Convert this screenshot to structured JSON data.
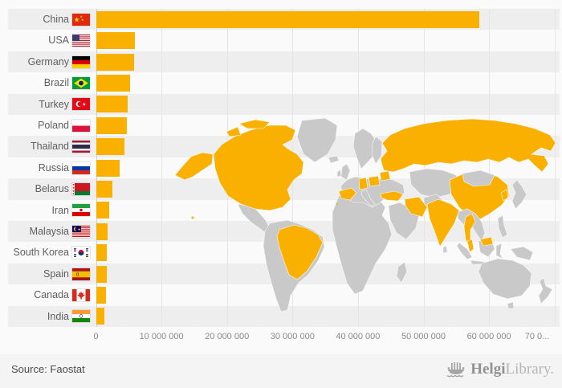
{
  "chart_data": {
    "type": "bar",
    "orientation": "horizontal",
    "title": "",
    "xlabel": "",
    "ylabel": "",
    "xlim": [
      0,
      70000000
    ],
    "grid": true,
    "categories": [
      "China",
      "USA",
      "Germany",
      "Brazil",
      "Turkey",
      "Poland",
      "Thailand",
      "Russia",
      "Belarus",
      "Iran",
      "Malaysia",
      "South Korea",
      "Spain",
      "Canada",
      "India"
    ],
    "values": [
      58400000,
      5900000,
      5700000,
      5200000,
      4750000,
      4600000,
      4250000,
      3550000,
      2400000,
      2000000,
      1700000,
      1600000,
      1550000,
      1500000,
      1200000
    ],
    "flags": [
      "cn",
      "us",
      "de",
      "br",
      "tr",
      "pl",
      "th",
      "ru",
      "by",
      "ir",
      "my",
      "kr",
      "es",
      "ca",
      "in"
    ],
    "x_tick_labels": [
      "0",
      "10 000 000",
      "20 000 000",
      "30 000 000",
      "40 000 000",
      "50 000 000",
      "60 000 000",
      "70 0..."
    ],
    "bar_color": "#f9b000",
    "map": {
      "highlight_color": "#f9b000",
      "base_color": "#c9c9c9",
      "highlighted_countries": [
        "USA",
        "Canada",
        "Brazil",
        "Spain",
        "Germany",
        "Poland",
        "Belarus",
        "Russia",
        "Turkey",
        "Iran",
        "India",
        "China",
        "Thailand",
        "Malaysia",
        "South Korea"
      ]
    }
  },
  "footer": {
    "source": "Source: Faostat",
    "brand_bold": "Helgi",
    "brand_light": "Library."
  }
}
